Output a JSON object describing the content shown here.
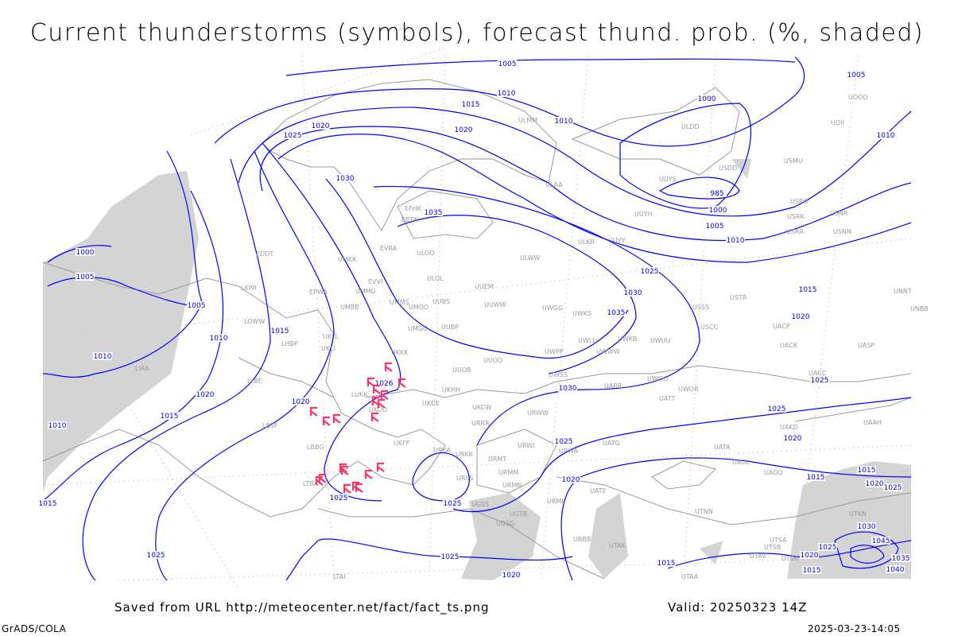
{
  "title": "Current thunderstorms (symbols), forecast thund. prob. (%, shaded)",
  "footer": {
    "source": "Saved from URL http://meteocenter.net/fact/fact_ts.png",
    "valid": "Valid: 20250323 14Z",
    "software": "GrADS/COLA",
    "timestamp": "2025-03-23-14:05"
  },
  "legend": {
    "isobar_color": "#0000ff",
    "thunderstorm_symbol_color": "#ff3366",
    "probability_shading_color": "#cccccc",
    "coastline_color": "#999999",
    "thunderstorm_symbol_icon": "thunderstorm-icon"
  },
  "isobar_labels": [
    "1005",
    "1010",
    "1015",
    "1020",
    "1025",
    "1020",
    "1010",
    "1000",
    "985",
    "1000",
    "1005",
    "1010",
    "1005",
    "1010",
    "1030",
    "1035",
    "1000",
    "1005",
    "1005",
    "1015",
    "1010",
    "1010",
    "1020",
    "1015",
    "1010",
    "1020",
    "1025",
    "1035",
    "1030",
    "1015",
    "1020",
    "1030",
    "1025",
    "1025",
    "1020",
    "1025",
    "1020",
    "1025",
    "1025",
    "1026",
    "1025",
    "1020",
    "1015",
    "1025",
    "1015",
    "1015",
    "1020",
    "1025",
    "1030",
    "1025",
    "1020",
    "1045",
    "1035",
    "1040",
    "1015",
    "1015"
  ],
  "stations": [
    "EDDT",
    "EPWA",
    "UMMG",
    "UMBB",
    "EVRA",
    "ULOO",
    "ULOL",
    "UUEM",
    "UUWW",
    "UMMS",
    "UMOO",
    "UUBS",
    "UMGG",
    "UUBP",
    "UKKK",
    "UUOO",
    "UUOB",
    "UKHH",
    "UKDE",
    "UKOO",
    "LUKK",
    "UKFF",
    "URKA",
    "URKK",
    "URRR",
    "UKCW",
    "URWW",
    "UWSS",
    "UWPP",
    "UWGG",
    "UWKS",
    "UWLL",
    "UWWW",
    "UWKB",
    "UWUU",
    "ULWW",
    "ULKR",
    "UUYY",
    "UUYH",
    "UUYS",
    "LKPR",
    "LOWW",
    "LHBP",
    "UKLL",
    "UKLI",
    "LYBE",
    "LBSF",
    "LBBG",
    "LTBA",
    "LIRA",
    "ULAA",
    "ULMM",
    "EFHK",
    "EETN",
    "UMKK",
    "EVVI",
    "USSS",
    "USCC",
    "UWOO",
    "UWOR",
    "UATT",
    "UARR",
    "UATG",
    "UATA",
    "UAOL",
    "UAOO",
    "UAKD",
    "UACC",
    "UASP",
    "UACK",
    "UACP",
    "USTR",
    "USRR",
    "USNN",
    "USRK",
    "USNR",
    "USRO",
    "USMU",
    "USDD",
    "ULDD",
    "UOII",
    "UOOO",
    "UNNT",
    "UNBB",
    "UAAH",
    "URWA",
    "URWI",
    "URMT",
    "URMM",
    "URMN",
    "URSS",
    "UGTB",
    "UDSG",
    "UBBB",
    "UGSS",
    "URML",
    "UATE",
    "UTNN",
    "UTAK",
    "UTSA",
    "UTSB",
    "UTAV",
    "UTSK",
    "UTAA",
    "UTKN",
    "LTAI"
  ]
}
